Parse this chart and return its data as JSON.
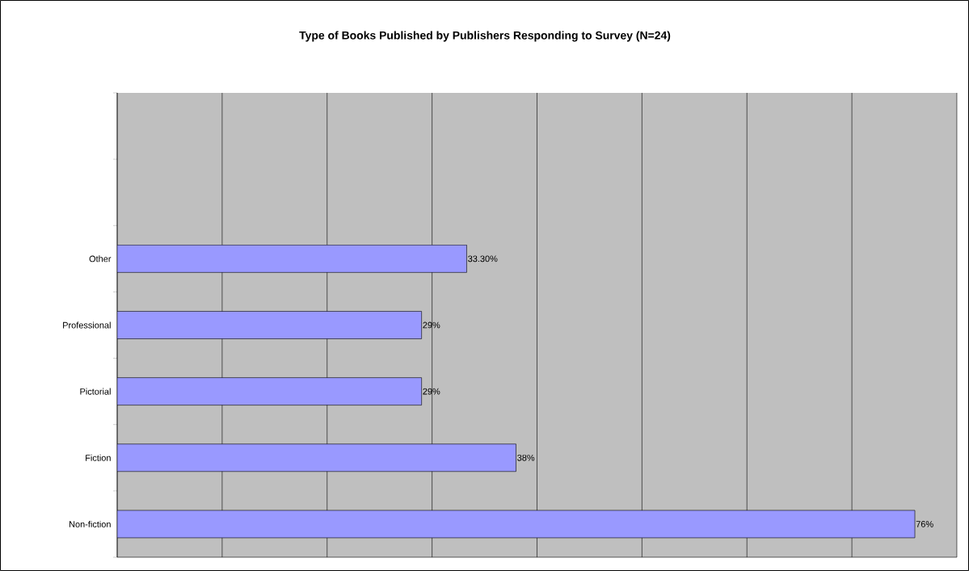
{
  "chart_data": {
    "type": "bar",
    "orientation": "horizontal",
    "title": "Type of Books Published by Publishers Responding to Survey (N=24)",
    "categories": [
      null,
      null,
      "Other",
      "Professional",
      "Pictorial",
      "Fiction",
      "Non-fiction"
    ],
    "values": [
      null,
      null,
      33.3,
      29,
      29,
      38,
      76
    ],
    "value_labels": [
      null,
      null,
      "33.30%",
      "29%",
      "29%",
      "38%",
      "76%"
    ],
    "color": "#9999ff",
    "xlim": [
      0,
      80
    ],
    "xticks": [
      {
        "value": 0,
        "label": null
      },
      {
        "value": 10,
        "label": null
      },
      {
        "value": 20,
        "label": null
      },
      {
        "value": 30,
        "label": null
      },
      {
        "value": 40,
        "label": null
      },
      {
        "value": 50,
        "label": null
      },
      {
        "value": 60,
        "label": null
      },
      {
        "value": 70,
        "label": null
      },
      {
        "value": 80,
        "label": null
      }
    ],
    "grid": "x",
    "tick_labels": "y"
  }
}
